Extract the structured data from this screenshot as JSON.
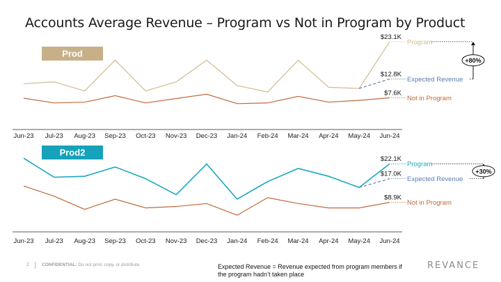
{
  "title": "Accounts Average Revenue – Program vs Not in Program by Product",
  "colors": {
    "program_prod": "#D2B98F",
    "program_prod2": "#1AA6BF",
    "not_in_program": "#C0683C",
    "expected": "#5B7DB0",
    "prod_badge": "#C7B088",
    "prod2_badge": "#16A2BA"
  },
  "footer": {
    "page": "2",
    "confidential_bold": "CONFIDENTIAL:",
    "confidential_rest": " Do not print, copy, or distribute.",
    "note": "Expected Revenue = Revenue expected from program members if the program hadn’t taken place",
    "logo": "REVANCE"
  },
  "chart_data": [
    {
      "type": "line",
      "product": "Prod",
      "categories": [
        "Jun-23",
        "Jul-23",
        "Aug-23",
        "Sep-23",
        "Oct-23",
        "Nov-23",
        "Dec-23",
        "Jan-24",
        "Feb-24",
        "Mar-24",
        "Apr-24",
        "May-24",
        "Jun-24"
      ],
      "series": [
        {
          "name": "Program",
          "values": [
            11.5,
            12.0,
            9.5,
            18.0,
            9.5,
            12.0,
            18.0,
            11.0,
            9.2,
            18.0,
            10.5,
            10.2,
            23.1
          ]
        },
        {
          "name": "Not in Program",
          "values": [
            7.5,
            6.2,
            6.4,
            8.2,
            6.2,
            7.4,
            8.6,
            6.0,
            6.2,
            8.0,
            6.4,
            6.9,
            7.6
          ]
        },
        {
          "name": "Expected Revenue",
          "values": [
            null,
            null,
            null,
            null,
            null,
            null,
            null,
            null,
            null,
            null,
            null,
            10.2,
            12.8
          ]
        }
      ],
      "end_labels": {
        "Program": "$23.1K",
        "Expected Revenue": "$12.8K",
        "Not in Program": "$7.6K"
      },
      "uplift": "+80%",
      "ylim": [
        0,
        25
      ]
    },
    {
      "type": "line",
      "product": "Prod2",
      "categories": [
        "Jun-23",
        "Jul-23",
        "Aug-23",
        "Sep-23",
        "Oct-23",
        "Nov-23",
        "Dec-23",
        "Jan-24",
        "Feb-24",
        "Mar-24",
        "Apr-24",
        "May-24",
        "Jun-24"
      ],
      "series": [
        {
          "name": "Program",
          "values": [
            24.0,
            17.5,
            17.8,
            21.0,
            17.0,
            11.5,
            22.0,
            10.0,
            16.0,
            20.5,
            17.8,
            14.0,
            22.1
          ]
        },
        {
          "name": "Not in Program",
          "values": [
            14.5,
            11.0,
            6.5,
            10.0,
            7.0,
            7.5,
            8.5,
            4.5,
            10.5,
            8.5,
            7.0,
            7.0,
            8.9
          ]
        },
        {
          "name": "Expected Revenue",
          "values": [
            null,
            null,
            null,
            null,
            null,
            null,
            null,
            null,
            null,
            null,
            null,
            14.0,
            17.0
          ]
        }
      ],
      "end_labels": {
        "Program": "$22.1K",
        "Expected Revenue": "$17.0K",
        "Not in Program": "$8.9K"
      },
      "uplift": "+30%",
      "ylim": [
        0,
        30
      ]
    }
  ]
}
